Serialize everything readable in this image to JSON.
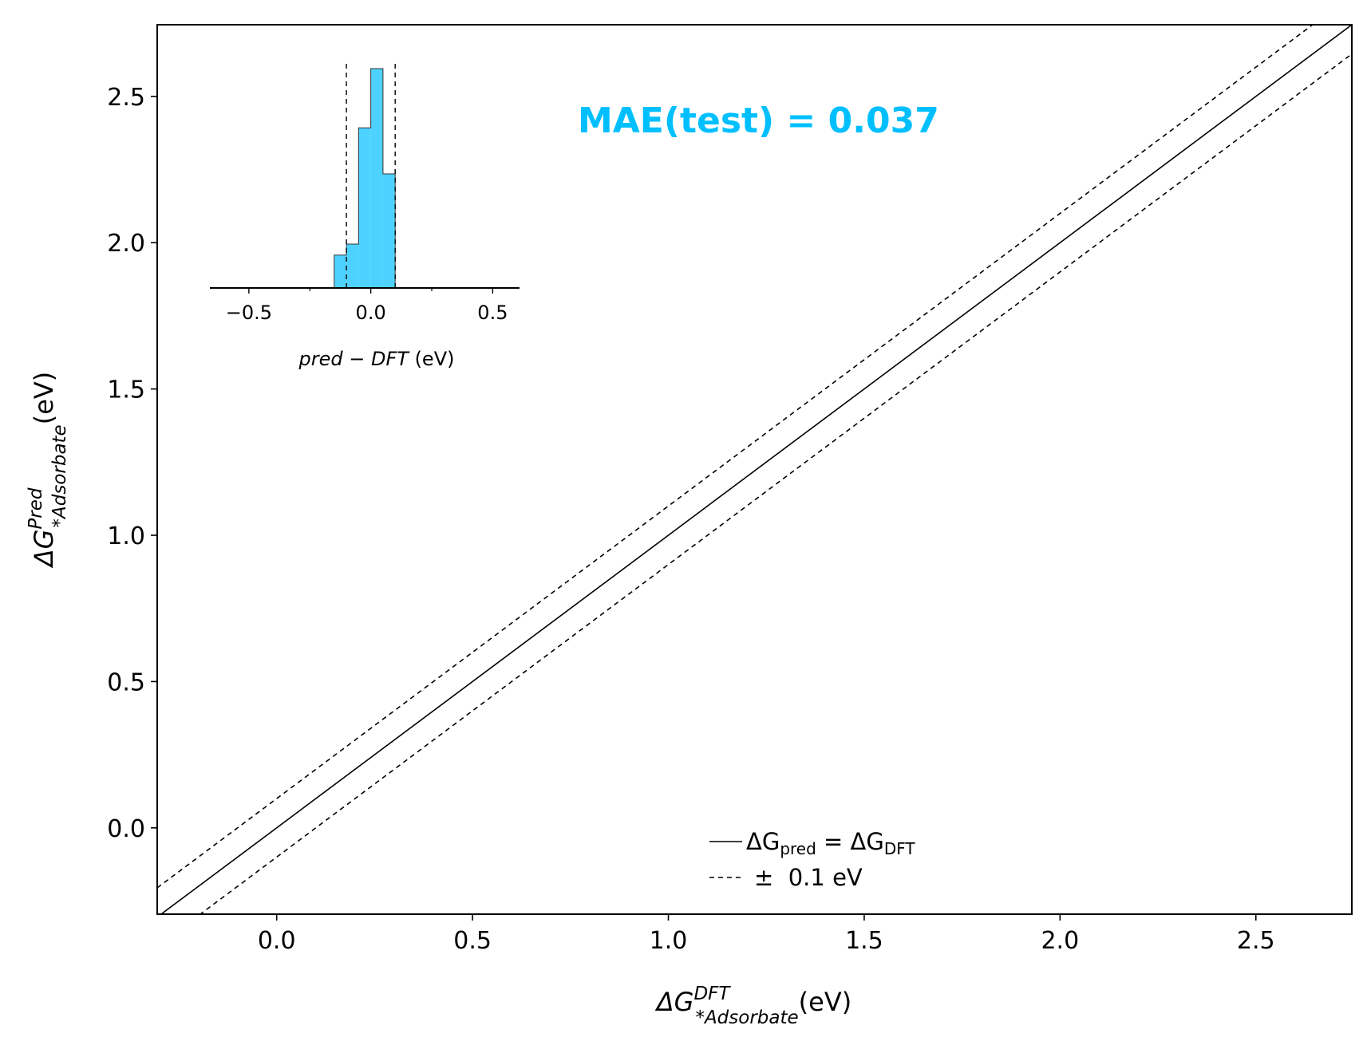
{
  "colors": {
    "accent": "#00bfff",
    "hist_fill": "#4dd2ff",
    "line": "#000000"
  },
  "annotation": {
    "text": "MAE(test) = 0.037",
    "x": 1.23,
    "y": 2.42
  },
  "chart_data": {
    "type": "line",
    "xlabel": {
      "base": "ΔG",
      "sup": "DFT",
      "sub": "*Adsorbate",
      "unit": "(eV)"
    },
    "ylabel": {
      "base": "ΔG",
      "sup": "Pred",
      "sub": "*Adsorbate",
      "unit": "(eV)"
    },
    "xlim": [
      -0.305,
      2.745
    ],
    "ylim": [
      -0.295,
      2.745
    ],
    "xticks": [
      0.0,
      0.5,
      1.0,
      1.5,
      2.0,
      2.5
    ],
    "xtick_labels": [
      "0.0",
      "0.5",
      "1.0",
      "1.5",
      "2.0",
      "2.5"
    ],
    "yticks": [
      0.0,
      0.5,
      1.0,
      1.5,
      2.0,
      2.5
    ],
    "ytick_labels": [
      "0.0",
      "0.5",
      "1.0",
      "1.5",
      "2.0",
      "2.5"
    ],
    "series": [
      {
        "style": "solid",
        "x": [
          -0.305,
          2.745
        ],
        "y": [
          -0.305,
          2.745
        ]
      },
      {
        "style": "dashed",
        "x": [
          -0.305,
          2.745
        ],
        "y": [
          -0.205,
          2.845
        ]
      },
      {
        "style": "dashed",
        "x": [
          -0.305,
          2.745
        ],
        "y": [
          -0.405,
          2.645
        ]
      }
    ],
    "legend": {
      "placement": "lower-center",
      "entries": [
        {
          "style": "solid",
          "label": {
            "base1": "ΔG",
            "sub1": "pred",
            "mid": " = ",
            "base2": "ΔG",
            "sub2": "DFT"
          }
        },
        {
          "style": "dashed",
          "label": {
            "text": "±  0.1 eV"
          }
        }
      ]
    },
    "inset": {
      "type": "histogram",
      "placement": "top-left",
      "xlabel": {
        "italic": "pred − DFT",
        "unit": " (eV)"
      },
      "xlim": [
        -0.66,
        0.61
      ],
      "xticks": [
        -0.5,
        0.0,
        0.5
      ],
      "xtick_labels": [
        "−0.5",
        "0.0",
        "0.5"
      ],
      "minor_xticks": [
        -0.25,
        0.25
      ],
      "bin_edges": [
        -0.15,
        -0.1,
        -0.05,
        0.0,
        0.05,
        0.1
      ],
      "counts": [
        0.15,
        0.2,
        0.73,
        1.0,
        0.52
      ],
      "threshold_lines": [
        -0.1,
        0.1
      ]
    }
  }
}
